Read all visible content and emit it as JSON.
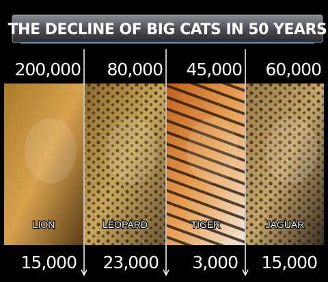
{
  "title": "THE DECLINE OF BIG CATS IN 50 YEARS",
  "cats": [
    {
      "name": "LION",
      "before": "200,000",
      "after": "15,000"
    },
    {
      "name": "LEOPARD",
      "before": "80,000",
      "after": "23,000"
    },
    {
      "name": "TIGER",
      "before": "45,000",
      "after": "3,000"
    },
    {
      "name": "JAGUAR",
      "before": "60,000",
      "after": "15,000"
    }
  ]
}
